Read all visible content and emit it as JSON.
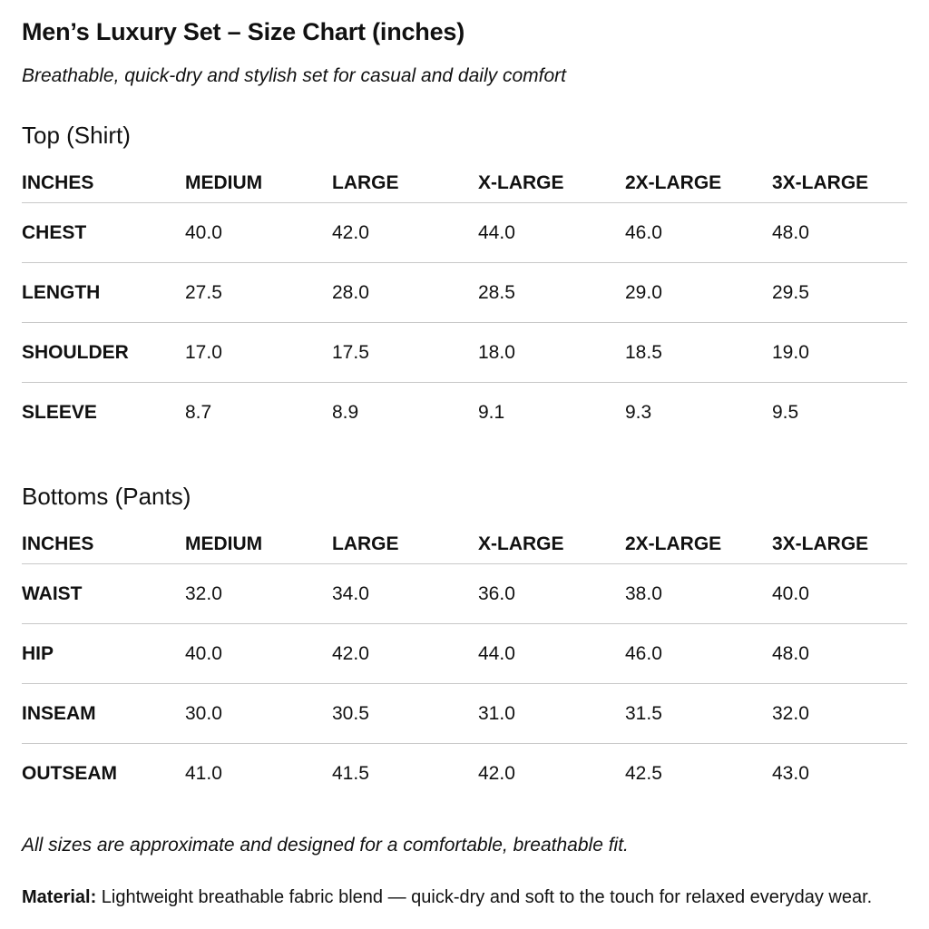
{
  "title": "Men’s Luxury Set – Size Chart (inches)",
  "subtitle": "Breathable, quick-dry and stylish set for casual and daily comfort",
  "top_section": {
    "heading": "Top (Shirt)",
    "columns": [
      "INCHES",
      "MEDIUM",
      "LARGE",
      "X-LARGE",
      "2X-LARGE",
      "3X-LARGE"
    ],
    "rows": [
      [
        "CHEST",
        "40.0",
        "42.0",
        "44.0",
        "46.0",
        "48.0"
      ],
      [
        "LENGTH",
        "27.5",
        "28.0",
        "28.5",
        "29.0",
        "29.5"
      ],
      [
        "SHOULDER",
        "17.0",
        "17.5",
        "18.0",
        "18.5",
        "19.0"
      ],
      [
        "SLEEVE",
        "8.7",
        "8.9",
        "9.1",
        "9.3",
        "9.5"
      ]
    ]
  },
  "bottom_section": {
    "heading": "Bottoms (Pants)",
    "columns": [
      "INCHES",
      "MEDIUM",
      "LARGE",
      "X-LARGE",
      "2X-LARGE",
      "3X-LARGE"
    ],
    "rows": [
      [
        "WAIST",
        "32.0",
        "34.0",
        "36.0",
        "38.0",
        "40.0"
      ],
      [
        "HIP",
        "40.0",
        "42.0",
        "44.0",
        "46.0",
        "48.0"
      ],
      [
        "INSEAM",
        "30.0",
        "30.5",
        "31.0",
        "31.5",
        "32.0"
      ],
      [
        "OUTSEAM",
        "41.0",
        "41.5",
        "42.0",
        "42.5",
        "43.0"
      ]
    ]
  },
  "note": "All sizes are approximate and designed for a comfortable, breathable fit.",
  "material": {
    "label": "Material:",
    "text": " Lightweight breathable fabric blend — quick-dry and soft to the touch for relaxed everyday wear."
  }
}
